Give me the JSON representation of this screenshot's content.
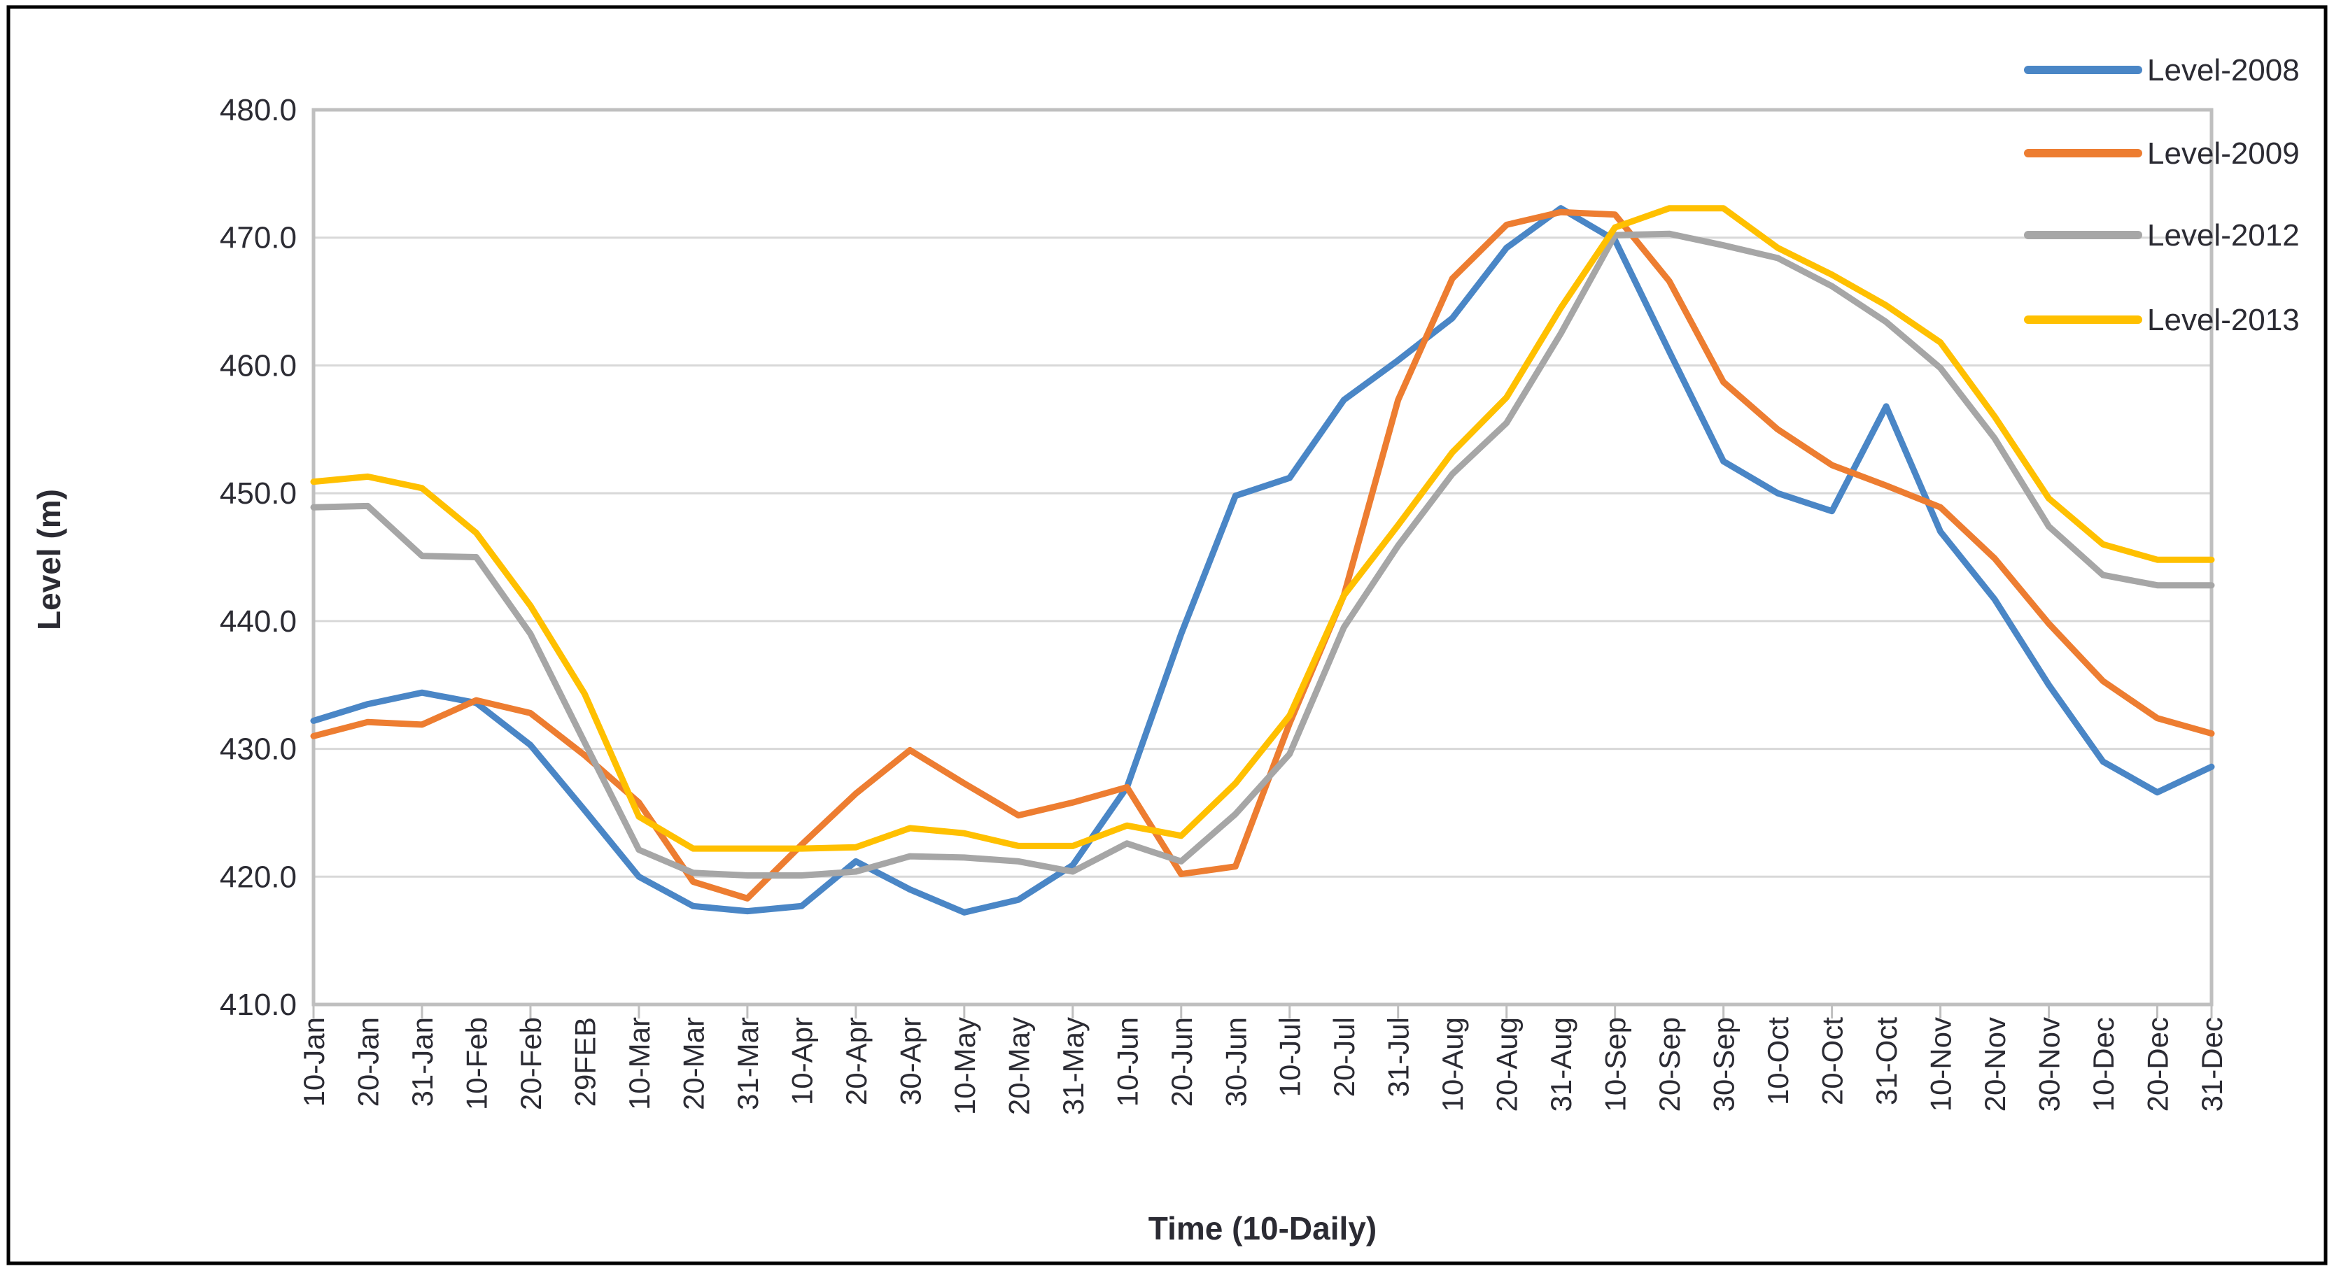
{
  "figure": {
    "background": "#ffffff",
    "frame_color": "#000000",
    "axis_color": "#bfbfbf",
    "gridline_color": "#d8d8d8",
    "text_color": "#2b2b33"
  },
  "chart_data": {
    "type": "line",
    "title": "",
    "xlabel": "Time (10-Daily)",
    "ylabel": "Level (m)",
    "ylim": [
      410,
      480
    ],
    "ytick_step": 10,
    "ytick_labels": [
      "480.0",
      "470.0",
      "460.0",
      "450.0",
      "440.0",
      "430.0",
      "420.0",
      "410.0"
    ],
    "grid": true,
    "legend_position": "top-right",
    "categories": [
      "10-Jan",
      "20-Jan",
      "31-Jan",
      "10-Feb",
      "20-Feb",
      "29FEB",
      "10-Mar",
      "20-Mar",
      "31-Mar",
      "10-Apr",
      "20-Apr",
      "30-Apr",
      "10-May",
      "20-May",
      "31-May",
      "10-Jun",
      "20-Jun",
      "30-Jun",
      "10-Jul",
      "20-Jul",
      "31-Jul",
      "10-Aug",
      "20-Aug",
      "31-Aug",
      "10-Sep",
      "20-Sep",
      "30-Sep",
      "10-Oct",
      "20-Oct",
      "31-Oct",
      "10-Nov",
      "20-Nov",
      "30-Nov",
      "10-Dec",
      "20-Dec",
      "31-Dec"
    ],
    "series": [
      {
        "name": "Level-2008",
        "color": "#4a86c6",
        "values": [
          432.2,
          433.5,
          434.4,
          433.6,
          430.3,
          425.2,
          420.0,
          417.7,
          417.3,
          417.7,
          421.2,
          419.0,
          417.2,
          418.2,
          420.9,
          427.0,
          439.0,
          449.8,
          451.2,
          457.3,
          460.4,
          463.7,
          469.2,
          472.3,
          469.8,
          461.1,
          452.5,
          450.0,
          448.6,
          456.8,
          447.0,
          441.7,
          435.0,
          429.0,
          426.6,
          428.6
        ]
      },
      {
        "name": "Level-2009",
        "color": "#ed7d31",
        "values": [
          431.0,
          432.1,
          431.9,
          433.8,
          432.8,
          429.5,
          425.8,
          419.6,
          418.3,
          422.5,
          426.5,
          429.9,
          427.3,
          424.8,
          425.8,
          427.0,
          420.2,
          420.8,
          432.0,
          442.0,
          457.3,
          466.8,
          471.0,
          472.0,
          471.8,
          466.6,
          458.7,
          455.0,
          452.2,
          450.6,
          448.9,
          444.9,
          439.8,
          435.3,
          432.4,
          431.2
        ]
      },
      {
        "name": "Level-2012",
        "color": "#a6a6a6",
        "values": [
          448.9,
          449.0,
          445.1,
          445.0,
          439.0,
          430.5,
          422.1,
          420.3,
          420.1,
          420.1,
          420.4,
          421.6,
          421.5,
          421.2,
          420.4,
          422.6,
          421.2,
          424.9,
          429.6,
          439.5,
          445.9,
          451.5,
          455.5,
          462.5,
          470.2,
          470.3,
          469.4,
          468.4,
          466.2,
          463.4,
          459.8,
          454.3,
          447.4,
          443.6,
          442.8,
          442.8
        ]
      },
      {
        "name": "Level-2013",
        "color": "#ffc000",
        "values": [
          450.9,
          451.3,
          450.4,
          446.9,
          441.2,
          434.3,
          424.7,
          422.2,
          422.2,
          422.2,
          422.3,
          423.8,
          423.4,
          422.4,
          422.4,
          424.0,
          423.2,
          427.3,
          432.6,
          442.0,
          447.5,
          453.2,
          457.5,
          464.5,
          470.8,
          472.3,
          472.3,
          469.2,
          467.1,
          464.7,
          461.8,
          456.0,
          449.6,
          446.0,
          444.8,
          444.8
        ]
      }
    ]
  }
}
